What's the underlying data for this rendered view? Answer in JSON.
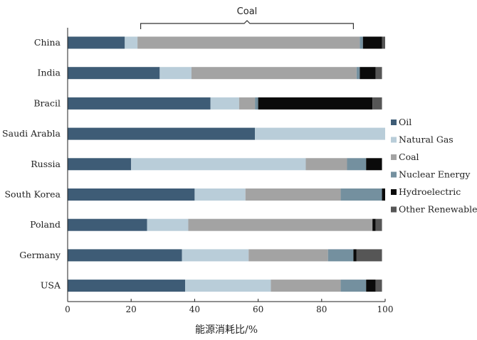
{
  "chart_data": {
    "type": "bar",
    "orientation": "horizontal",
    "stacked": true,
    "categories": [
      "China",
      "India",
      "Bracil",
      "Saudi Arabla",
      "Russia",
      "South Korea",
      "Poland",
      "Germany",
      "USA"
    ],
    "series": [
      {
        "name": "Oil",
        "color": "#3e5c76",
        "values": [
          18,
          29,
          45,
          59,
          20,
          40,
          25,
          36,
          37
        ]
      },
      {
        "name": "Natural Gas",
        "color": "#b9cdd9",
        "values": [
          4,
          10,
          9,
          41,
          55,
          16,
          13,
          21,
          27
        ]
      },
      {
        "name": "Coal",
        "color": "#a3a3a3",
        "values": [
          70,
          52,
          5,
          0,
          13,
          30,
          58,
          25,
          22
        ]
      },
      {
        "name": "Nuclear Energy",
        "color": "#74909f",
        "values": [
          1,
          1,
          1,
          0,
          6,
          13,
          0,
          8,
          8
        ]
      },
      {
        "name": "Hydroelectric",
        "color": "#0a0a0a",
        "values": [
          6,
          5,
          36,
          0,
          5,
          1,
          1,
          1,
          3
        ]
      },
      {
        "name": "Other Renewables",
        "color": "#565656",
        "values": [
          1,
          2,
          3,
          0,
          0,
          0,
          2,
          8,
          2
        ]
      }
    ],
    "xlim": [
      0,
      100
    ],
    "xticks": [
      0,
      20,
      40,
      60,
      80,
      100
    ],
    "xlabel": "能源消耗比/%",
    "annotation": "Coal",
    "annotation_span": [
      23,
      90
    ],
    "legend_position": "right"
  }
}
